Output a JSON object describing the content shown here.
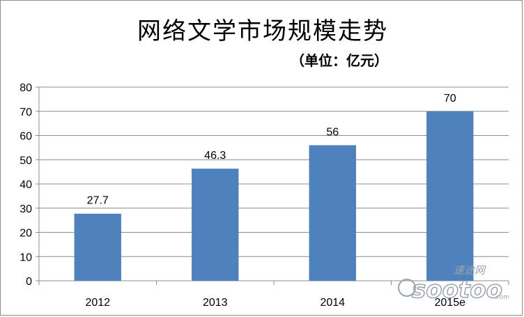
{
  "chart_data": {
    "type": "bar",
    "title": "网络文学市场规模走势",
    "subtitle": "（单位：亿元）",
    "categories": [
      "2012",
      "2013",
      "2014",
      "2015e"
    ],
    "values": [
      27.7,
      46.3,
      56,
      70
    ],
    "data_labels": [
      "27.7",
      "46.3",
      "56",
      "70"
    ],
    "ylim": [
      0,
      80
    ],
    "yticks": [
      0,
      10,
      20,
      30,
      40,
      50,
      60,
      70,
      80
    ],
    "grid": true,
    "legend": "none",
    "bar_color": "#4f81bd"
  },
  "watermark": {
    "cn": "速途网",
    "en": "sootoo",
    "suffix": ".com",
    "color": "#9aa3ad"
  }
}
